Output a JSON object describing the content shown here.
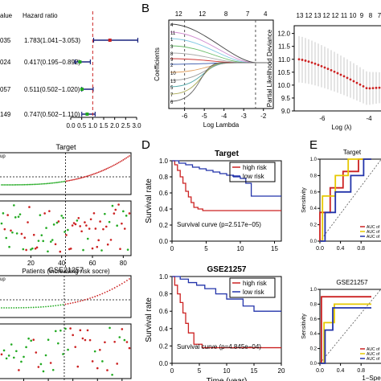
{
  "panel_letters": [
    "B",
    "D",
    "E"
  ],
  "chart_data": [
    {
      "id": "forest",
      "type": "forest",
      "header_value": "alue",
      "header_hr": "Hazard ratio",
      "rows": [
        {
          "label": "035",
          "text": "1.783(1.041−3.053)",
          "hr": 1.783,
          "lo": 1.041,
          "hi": 3.053,
          "color": "#cc2222"
        },
        {
          "label": "024",
          "text": "0.417(0.195−0.892)",
          "hr": 0.417,
          "lo": 0.195,
          "hi": 0.892,
          "color": "#22aa22"
        },
        {
          "label": "057",
          "text": "0.511(0.502−1.020)",
          "hr": 0.511,
          "lo": 0.502,
          "hi": 1.02,
          "color": "#22aa22"
        },
        {
          "label": "149",
          "text": "0.747(0.502−1.110)",
          "hr": 0.747,
          "lo": 0.502,
          "hi": 1.11,
          "color": "#22aa22"
        }
      ],
      "xticks": [
        "0.0",
        "0.5",
        "1.0",
        "1.5",
        "2.0",
        "2.5",
        "3.0"
      ],
      "xlim": [
        0,
        3.0
      ],
      "ref_line": 1.0
    },
    {
      "id": "lasso-coef",
      "type": "line",
      "top_ticks": [
        "12",
        "12",
        "8",
        "7",
        "4"
      ],
      "xticks": [
        "-6",
        "-5",
        "-4",
        "-3",
        "-2"
      ],
      "xlabel": "Log Lambda",
      "ylabel": "Coefficients",
      "xlim": [
        -6.8,
        -1.5
      ],
      "vlines": [
        -6.0,
        -2.4
      ],
      "left_labels": [
        "4",
        "11",
        "1",
        "3",
        "8",
        "9",
        "2",
        "10",
        "13",
        "5",
        "7",
        "6"
      ]
    },
    {
      "id": "lasso-cv",
      "type": "scatter",
      "top_ticks": [
        "13",
        "12",
        "13",
        "12",
        "12",
        "11",
        "10",
        "9",
        "8",
        "7"
      ],
      "yticks": [
        "9.0",
        "9.5",
        "10.0",
        "10.5",
        "11.0",
        "11.5",
        "12.0"
      ],
      "ylim": [
        9.0,
        12.3
      ],
      "xticks": [
        "-6",
        "-4"
      ],
      "xlabel": "Log (λ)",
      "ylabel": "Partial Likelihood Deviance",
      "xlim": [
        -7.2,
        -2.8
      ]
    },
    {
      "id": "risk-target",
      "type": "scatter",
      "title": "Target",
      "y_fragment": "up",
      "xticks": [
        "20",
        "40",
        "60",
        "80"
      ],
      "xlabel": "Patients (increasing risk socre)",
      "cutoff": 42,
      "n": 84
    },
    {
      "id": "risk-gse",
      "type": "scatter",
      "title": "GSE21257",
      "y_fragment": "up",
      "xticks": [
        "10",
        "20",
        "30",
        "40",
        "50"
      ],
      "xlabel": "Patients (increasing risk socre)",
      "cutoff": 26,
      "n": 53
    },
    {
      "id": "km-target",
      "type": "line",
      "title": "Target",
      "ylabel": "Survival rate",
      "xticks": [
        "0",
        "5",
        "10",
        "15"
      ],
      "yticks": [
        "0.0",
        "0.2",
        "0.4",
        "0.6",
        "0.8",
        "1.0"
      ],
      "xlim": [
        0,
        16
      ],
      "ylim": [
        0,
        1.0
      ],
      "annotation": "Survival curve (p=2.517e−05)",
      "series": [
        {
          "name": "high risk",
          "color": "#cc2222",
          "x": [
            0,
            0.4,
            0.8,
            1.2,
            1.6,
            2.0,
            2.4,
            2.8,
            3.2,
            3.8,
            4.5,
            16
          ],
          "y": [
            1.0,
            0.95,
            0.88,
            0.8,
            0.72,
            0.62,
            0.55,
            0.48,
            0.42,
            0.4,
            0.38,
            0.38
          ]
        },
        {
          "name": "low risk",
          "color": "#2233aa",
          "x": [
            0,
            1,
            2,
            3,
            4,
            5,
            6,
            7,
            8,
            9,
            10,
            10.8,
            11.6,
            16
          ],
          "y": [
            1.0,
            0.97,
            0.95,
            0.92,
            0.9,
            0.88,
            0.86,
            0.84,
            0.82,
            0.8,
            0.78,
            0.72,
            0.56,
            0.56
          ]
        }
      ]
    },
    {
      "id": "km-gse",
      "type": "line",
      "title": "GSE21257",
      "ylabel": "Survival rate",
      "xticks": [
        "0",
        "5",
        "10",
        "15",
        "20"
      ],
      "yticks": [
        "0.0",
        "0.2",
        "0.4",
        "0.6",
        "0.8",
        "1.0"
      ],
      "xlim": [
        0,
        20
      ],
      "ylim": [
        0,
        1.0
      ],
      "xlabel": "Time (year)",
      "annotation": "Survival curve (p=4.845e−04)",
      "series": [
        {
          "name": "high risk",
          "color": "#cc2222",
          "x": [
            0,
            0.5,
            1.0,
            1.5,
            2.0,
            2.5,
            3.0,
            4.0,
            5.5,
            20
          ],
          "y": [
            1.0,
            0.9,
            0.8,
            0.7,
            0.58,
            0.46,
            0.35,
            0.22,
            0.18,
            0.18
          ]
        },
        {
          "name": "low risk",
          "color": "#2233aa",
          "x": [
            0,
            1.5,
            3.0,
            4.5,
            6.0,
            8.0,
            10.0,
            13.0,
            15.0,
            20
          ],
          "y": [
            1.0,
            0.97,
            0.93,
            0.9,
            0.86,
            0.8,
            0.74,
            0.66,
            0.6,
            0.6
          ]
        }
      ]
    },
    {
      "id": "roc-target",
      "type": "line",
      "title": "Target",
      "ylabel": "Sensitivity",
      "xticks": [
        "0.0",
        "0.4",
        "0.8"
      ],
      "yticks": [
        "0.0",
        "0.2",
        "0.4",
        "0.6",
        "0.8",
        "1.0"
      ],
      "xlim": [
        0,
        1.0
      ],
      "ylim": [
        0,
        1.0
      ],
      "legend": [
        "AUC of",
        "AUC of",
        "AUC of"
      ],
      "series": [
        {
          "color": "#cc2222",
          "x": [
            0,
            0,
            0.2,
            0.2,
            0.45,
            0.45,
            0.75,
            0.75,
            1.0
          ],
          "y": [
            0,
            0.35,
            0.35,
            0.65,
            0.65,
            0.85,
            0.85,
            1.0,
            1.0
          ]
        },
        {
          "color": "#e6c800",
          "x": [
            0,
            0.05,
            0.05,
            0.3,
            0.3,
            0.55,
            0.55,
            1.0
          ],
          "y": [
            0,
            0,
            0.55,
            0.55,
            0.8,
            0.8,
            1.0,
            1.0
          ]
        },
        {
          "color": "#2233aa",
          "x": [
            0,
            0.1,
            0.1,
            0.3,
            0.3,
            0.6,
            0.6,
            0.85,
            0.85,
            1.0
          ],
          "y": [
            0,
            0,
            0.35,
            0.35,
            0.6,
            0.6,
            0.8,
            0.8,
            1.0,
            1.0
          ]
        }
      ]
    },
    {
      "id": "roc-gse",
      "type": "line",
      "title": "GSE21257",
      "ylabel": "Sensitivity",
      "xlabel": "1−Spec",
      "xticks": [
        "0.0",
        "0.4",
        "0.8"
      ],
      "yticks": [
        "0.0",
        "0.2",
        "0.4",
        "0.6",
        "0.8",
        "1.0"
      ],
      "xlim": [
        0,
        1.0
      ],
      "ylim": [
        0,
        1.0
      ],
      "legend": [
        "AUC of",
        "AUC of",
        "AUC of"
      ],
      "series": [
        {
          "color": "#cc2222",
          "x": [
            0,
            0.03,
            0.03,
            1.0
          ],
          "y": [
            0,
            0,
            0.9,
            0.9
          ]
        },
        {
          "color": "#e6c800",
          "x": [
            0,
            0.08,
            0.08,
            0.28,
            0.28,
            1.0
          ],
          "y": [
            0,
            0,
            0.55,
            0.55,
            0.8,
            0.8
          ]
        },
        {
          "color": "#2233aa",
          "x": [
            0,
            0.1,
            0.1,
            0.25,
            0.25,
            1.0
          ],
          "y": [
            0,
            0,
            0.45,
            0.45,
            0.75,
            0.75
          ]
        }
      ]
    }
  ]
}
